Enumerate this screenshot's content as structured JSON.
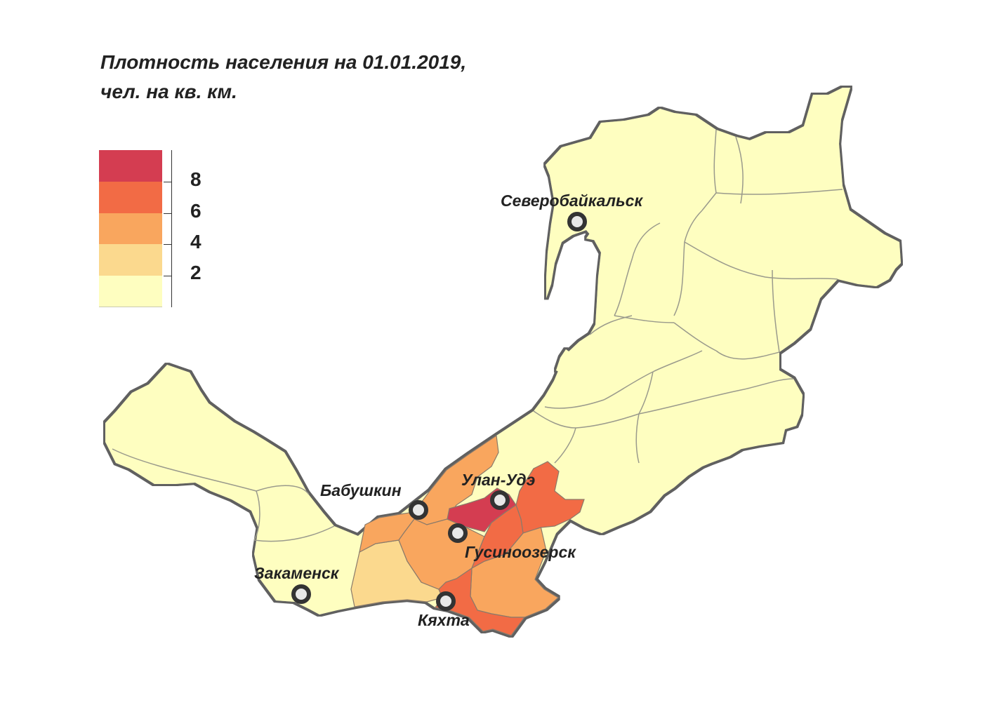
{
  "title": {
    "line1": "Плотность населения на 01.01.2019,",
    "line2": "чел. на кв. км."
  },
  "legend": {
    "bins": [
      {
        "color": "#d43d51"
      },
      {
        "color": "#f26b45"
      },
      {
        "color": "#f9a65e"
      },
      {
        "color": "#fbd98e"
      },
      {
        "color": "#fefec0"
      }
    ],
    "labels": [
      "8",
      "6",
      "4",
      "2"
    ]
  },
  "colors": {
    "border": "#6d6d6d",
    "outline": "#555555",
    "district_line": "#9a9a8c",
    "marker": "#333333"
  },
  "cities": [
    {
      "id": "severobaikalsk",
      "name": "Северобайкальск"
    },
    {
      "id": "ulan-ude",
      "name": "Улан-Удэ"
    },
    {
      "id": "babushkin",
      "name": "Бабушкин"
    },
    {
      "id": "gusinoozersk",
      "name": "Гусиноозерск"
    },
    {
      "id": "zakamensk",
      "name": "Закаменск"
    },
    {
      "id": "kyakhta",
      "name": "Кяхта"
    }
  ]
}
